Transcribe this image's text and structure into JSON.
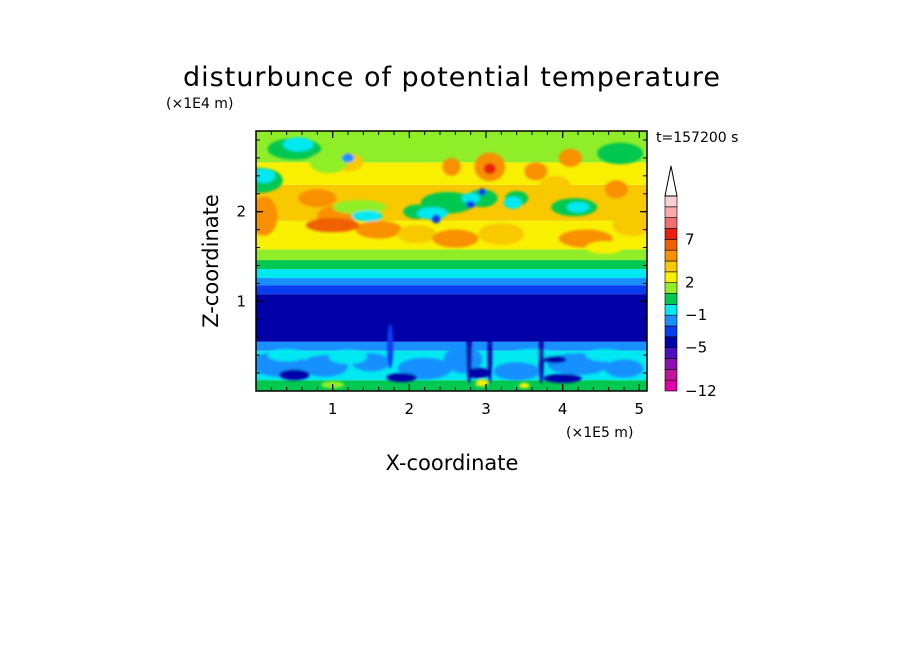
{
  "chart_data": {
    "type": "heatmap",
    "title": "disturbunce of potential temperature",
    "time_label": "t=157200 s",
    "xlabel": "X-coordinate",
    "ylabel": "Z-coordinate",
    "x_unit": "(×1E5 m)",
    "y_unit": "(×1E4 m)",
    "xlim": [
      0,
      5.1
    ],
    "ylim": [
      0,
      2.9
    ],
    "x_ticks": [
      {
        "value": 1,
        "label": "1"
      },
      {
        "value": 2,
        "label": "2"
      },
      {
        "value": 3,
        "label": "3"
      },
      {
        "value": 4,
        "label": "4"
      },
      {
        "value": 5,
        "label": "5"
      }
    ],
    "y_ticks": [
      {
        "value": 1,
        "label": "1"
      },
      {
        "value": 2,
        "label": "2"
      }
    ],
    "colorbar": {
      "levels": [
        {
          "value": -12,
          "color": "#e000a8"
        },
        {
          "value": -11,
          "color": "#c0149c"
        },
        {
          "value": -9,
          "color": "#8a10b0"
        },
        {
          "value": -7,
          "color": "#4a10c0"
        },
        {
          "value": -5,
          "color": "#0000a8"
        },
        {
          "value": -4,
          "color": "#0a3cf0"
        },
        {
          "value": -3,
          "color": "#1890ff"
        },
        {
          "value": -1,
          "color": "#00e8f0"
        },
        {
          "value": 0,
          "color": "#00c850"
        },
        {
          "value": 1,
          "color": "#90ee28"
        },
        {
          "value": 2,
          "color": "#f8f000"
        },
        {
          "value": 3,
          "color": "#f8c800"
        },
        {
          "value": 5,
          "color": "#f89000"
        },
        {
          "value": 6,
          "color": "#f06000"
        },
        {
          "value": 7,
          "color": "#e82010"
        },
        {
          "value": 8,
          "color": "#f07070"
        },
        {
          "value": 9,
          "color": "#f8a8a8"
        },
        {
          "value": 10,
          "color": "#f8d0d0"
        }
      ],
      "tick_labels": [
        "7",
        "2",
        "−1",
        "−5",
        "−12"
      ],
      "extend": "max"
    },
    "structure_description": "stratified field: strong negative anomaly layer (about −5) between z≈0.5 and 1.3; cyan/green negative-weak field near surface; positive warm anomalies (2–7) with patchy structure above z≈1.4"
  }
}
